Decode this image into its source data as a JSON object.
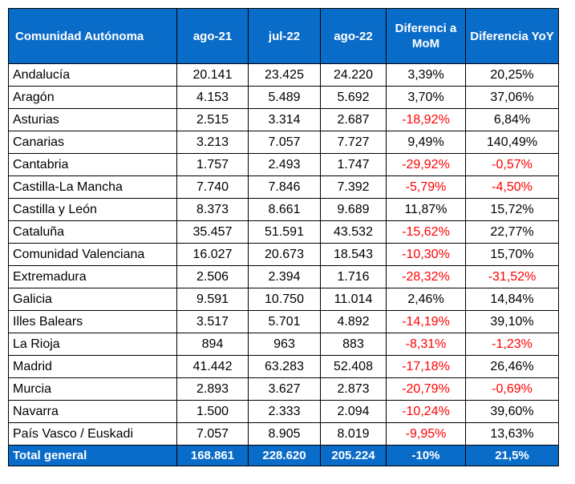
{
  "header": {
    "region": "Comunidad Autónoma",
    "col1": "ago-21",
    "col2": "jul-22",
    "col3": "ago-22",
    "col4": "Diferenci a MoM",
    "col5": "Diferencia YoY"
  },
  "rows": [
    [
      "Andalucía",
      "20.141",
      "23.425",
      "24.220",
      "3,39%",
      "20,25%"
    ],
    [
      "Aragón",
      "4.153",
      "5.489",
      "5.692",
      "3,70%",
      "37,06%"
    ],
    [
      "Asturias",
      "2.515",
      "3.314",
      "2.687",
      "-18,92%",
      "6,84%"
    ],
    [
      "Canarias",
      "3.213",
      "7.057",
      "7.727",
      "9,49%",
      "140,49%"
    ],
    [
      "Cantabria",
      "1.757",
      "2.493",
      "1.747",
      "-29,92%",
      "-0,57%"
    ],
    [
      "Castilla-La Mancha",
      "7.740",
      "7.846",
      "7.392",
      "-5,79%",
      "-4,50%"
    ],
    [
      "Castilla y León",
      "8.373",
      "8.661",
      "9.689",
      "11,87%",
      "15,72%"
    ],
    [
      "Cataluña",
      "35.457",
      "51.591",
      "43.532",
      "-15,62%",
      "22,77%"
    ],
    [
      "Comunidad Valenciana",
      "16.027",
      "20.673",
      "18.543",
      "-10,30%",
      "15,70%"
    ],
    [
      "Extremadura",
      "2.506",
      "2.394",
      "1.716",
      "-28,32%",
      "-31,52%"
    ],
    [
      "Galicia",
      "9.591",
      "10.750",
      "11.014",
      "2,46%",
      "14,84%"
    ],
    [
      "Illes Balears",
      "3.517",
      "5.701",
      "4.892",
      "-14,19%",
      "39,10%"
    ],
    [
      "La Rioja",
      "894",
      "963",
      "883",
      "-8,31%",
      "-1,23%"
    ],
    [
      "Madrid",
      "41.442",
      "63.283",
      "52.408",
      "-17,18%",
      "26,46%"
    ],
    [
      "Murcia",
      "2.893",
      "3.627",
      "2.873",
      "-20,79%",
      "-0,69%"
    ],
    [
      "Navarra",
      "1.500",
      "2.333",
      "2.094",
      "-10,24%",
      "39,60%"
    ],
    [
      "País Vasco / Euskadi",
      "7.057",
      "8.905",
      "8.019",
      "-9,95%",
      "13,63%"
    ]
  ],
  "total": [
    "Total general",
    "168.861",
    "228.620",
    "205.224",
    "-10%",
    "21,5%"
  ],
  "colors": {
    "header_bg": "#0a6cc9",
    "header_text": "#ffffff",
    "negative": "#ff0000",
    "text": "#000000"
  }
}
